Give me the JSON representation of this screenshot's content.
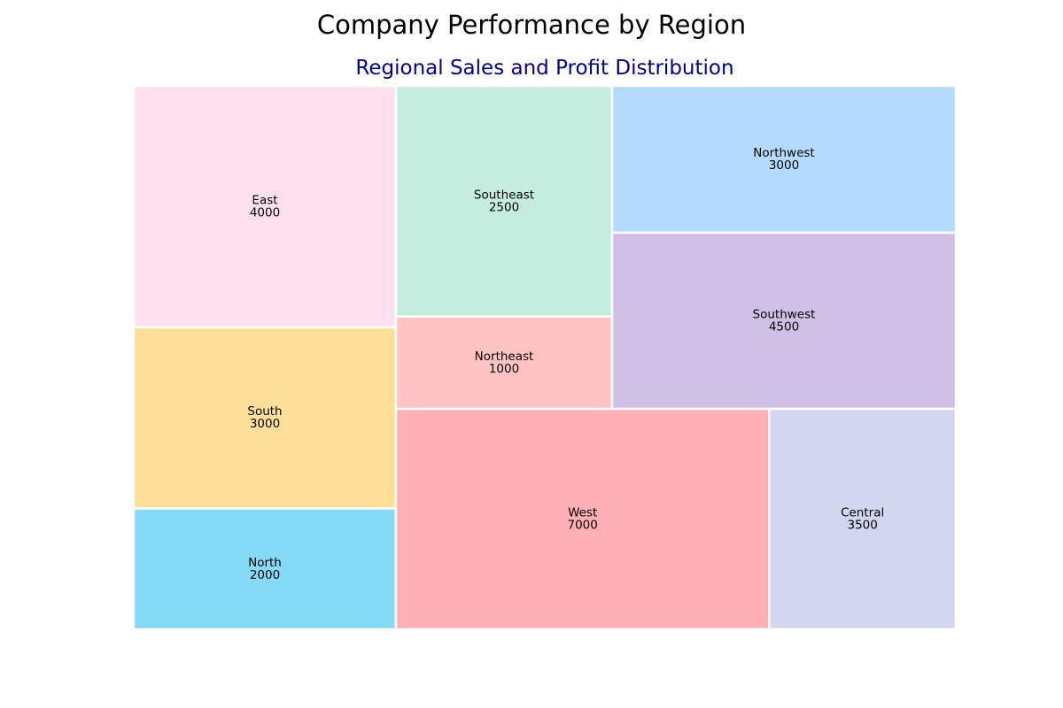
{
  "chart_data": {
    "type": "treemap",
    "title": "Company Performance by Region",
    "subtitle": "Regional Sales and Profit Distribution",
    "cells": [
      {
        "label": "East",
        "value": 4000,
        "color": "#ffe0ec"
      },
      {
        "label": "South",
        "value": 3000,
        "color": "#fedf97"
      },
      {
        "label": "North",
        "value": 2000,
        "color": "#85daf6"
      },
      {
        "label": "Southeast",
        "value": 2500,
        "color": "#c4ede0"
      },
      {
        "label": "Northeast",
        "value": 1000,
        "color": "#fec3c2"
      },
      {
        "label": "Northwest",
        "value": 3000,
        "color": "#b4daff"
      },
      {
        "label": "Southwest",
        "value": 4500,
        "color": "#d0c0e8"
      },
      {
        "label": "West",
        "value": 7000,
        "color": "#ffb0b7"
      },
      {
        "label": "Central",
        "value": 3500,
        "color": "#d2d7ef"
      }
    ],
    "border_color": "#ffffff"
  }
}
